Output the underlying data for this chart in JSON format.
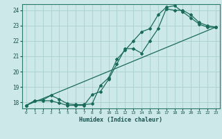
{
  "xlabel": "Humidex (Indice chaleur)",
  "bg_color": "#cce8e8",
  "grid_color": "#aacfcf",
  "line_color": "#1a6b5a",
  "xlim": [
    -0.5,
    23.5
  ],
  "ylim": [
    17.6,
    24.4
  ],
  "yticks": [
    18,
    19,
    20,
    21,
    22,
    23,
    24
  ],
  "xticks": [
    0,
    1,
    2,
    3,
    4,
    5,
    6,
    7,
    8,
    9,
    10,
    11,
    12,
    13,
    14,
    15,
    16,
    17,
    18,
    19,
    20,
    21,
    22,
    23
  ],
  "line1_x": [
    0,
    1,
    2,
    3,
    4,
    5,
    6,
    7,
    8,
    9,
    10,
    11,
    12,
    13,
    14,
    15,
    16,
    17,
    18,
    19,
    20,
    21,
    22,
    23
  ],
  "line1_y": [
    17.8,
    18.1,
    18.15,
    18.45,
    18.2,
    17.9,
    17.85,
    17.85,
    17.9,
    19.1,
    19.6,
    20.8,
    21.4,
    22.0,
    22.6,
    22.8,
    23.7,
    24.2,
    24.3,
    23.9,
    23.5,
    23.1,
    22.9,
    22.9
  ],
  "line2_x": [
    0,
    1,
    2,
    3,
    4,
    5,
    6,
    7,
    8,
    9,
    10,
    11,
    12,
    13,
    14,
    15,
    16,
    17,
    18,
    19,
    20,
    21,
    22,
    23
  ],
  "line2_y": [
    17.8,
    18.1,
    18.1,
    18.1,
    17.95,
    17.8,
    17.8,
    17.8,
    18.5,
    18.7,
    19.5,
    20.5,
    21.5,
    21.5,
    21.2,
    22.0,
    22.8,
    24.1,
    24.0,
    24.0,
    23.7,
    23.2,
    23.0,
    22.9
  ],
  "line3_x": [
    0,
    23
  ],
  "line3_y": [
    17.8,
    22.9
  ]
}
